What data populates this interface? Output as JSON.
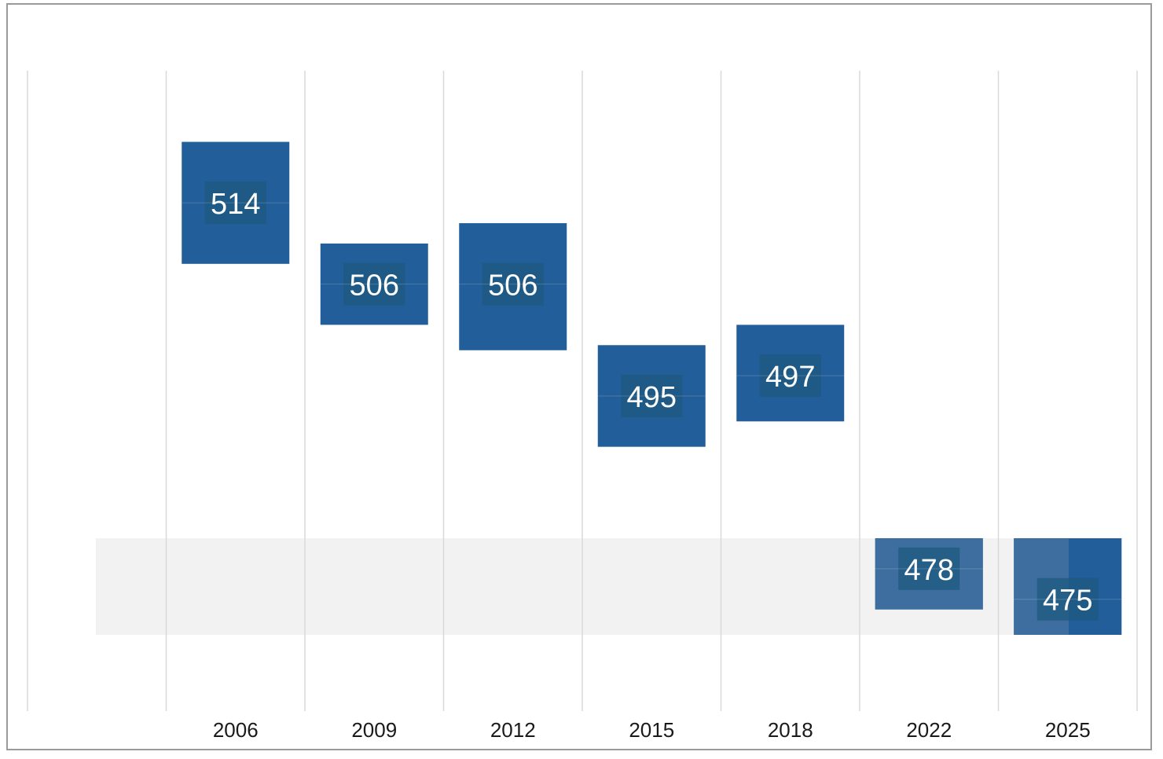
{
  "chart_data": {
    "type": "bar",
    "subtype": "floating-range",
    "categories": [
      "2006",
      "2009",
      "2012",
      "2015",
      "2018",
      "2022",
      "2025"
    ],
    "values": [
      514,
      506,
      506,
      495,
      497,
      478,
      475
    ],
    "ranges": [
      [
        508,
        520
      ],
      [
        502,
        510
      ],
      [
        499.5,
        512
      ],
      [
        490,
        500
      ],
      [
        492.5,
        502
      ],
      [
        474,
        481
      ],
      [
        471.5,
        481
      ]
    ],
    "reference_band": [
      471.5,
      481
    ],
    "ylim": [
      464,
      527
    ],
    "grid": {
      "vertical": true,
      "horizontal": false
    },
    "title": "",
    "xlabel": "",
    "ylabel": "",
    "colors": {
      "bar": "#225e99",
      "bar_in_band": "#3d6e9f",
      "label_box": "#1d5a7f",
      "band": "#f2f2f2",
      "grid": "#d9d9d9",
      "value_text": "#ffffff",
      "tick_text": "#1a1a1a"
    }
  }
}
